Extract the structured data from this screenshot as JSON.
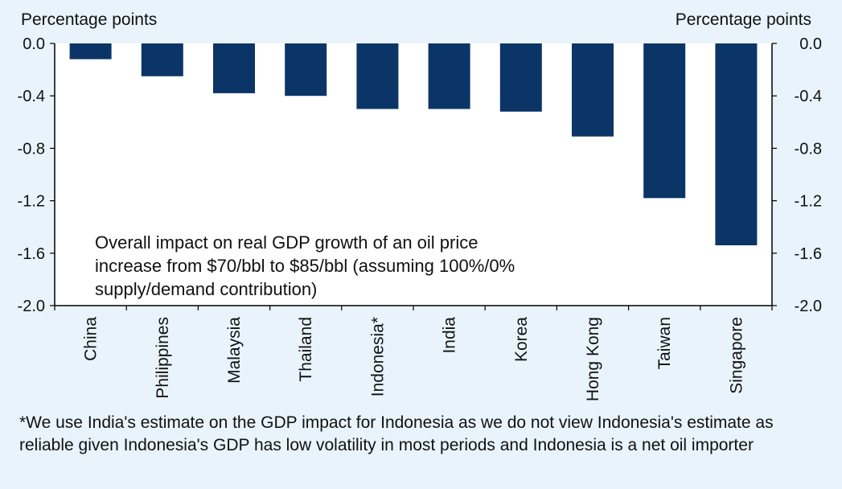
{
  "chart_data": {
    "type": "bar",
    "title": "",
    "ylabel_left": "Percentage points",
    "ylabel_right": "Percentage points",
    "ylim": [
      -2.0,
      0.0
    ],
    "yticks": [
      "0.0",
      "-0.4",
      "-0.8",
      "-1.2",
      "-1.6",
      "-2.0"
    ],
    "ytick_values": [
      0.0,
      -0.4,
      -0.8,
      -1.2,
      -1.6,
      -2.0
    ],
    "categories": [
      "China",
      "Philippines",
      "Malaysia",
      "Thailand",
      "Indonesia*",
      "India",
      "Korea",
      "Hong Kong",
      "Taiwan",
      "Singapore"
    ],
    "values": [
      -0.12,
      -0.25,
      -0.38,
      -0.4,
      -0.5,
      -0.5,
      -0.52,
      -0.71,
      -1.18,
      -1.54
    ],
    "bar_color": "#0b3566",
    "annotation": [
      "Overall  impact on real GDP growth  of an oil price",
      "increase from $70/bbl to $85/bbl (assuming 100%/0%",
      "supply/demand  contribution)"
    ]
  },
  "footnote": "*We use India's estimate on the GDP impact for Indonesia as we do not view Indonesia's estimate as reliable given Indonesia's GDP has low volatility in most periods and Indonesia is a net oil importer"
}
